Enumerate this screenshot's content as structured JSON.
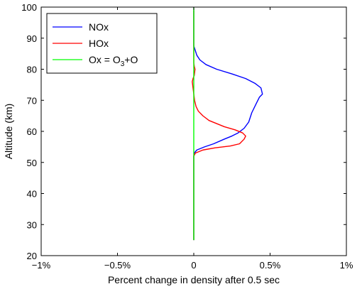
{
  "chart_data": {
    "type": "line",
    "title": "",
    "xlabel": "Percent change in density after 0.5 sec",
    "ylabel": "Altitude (km)",
    "xlim": [
      -1,
      1
    ],
    "ylim": [
      20,
      100
    ],
    "x_ticks": [
      -1,
      -0.5,
      0,
      0.5,
      1
    ],
    "x_tick_labels": [
      "−1%",
      "−0.5%",
      "0",
      "0.5%",
      "1%"
    ],
    "y_ticks": [
      20,
      30,
      40,
      50,
      60,
      70,
      80,
      90,
      100
    ],
    "y_tick_labels": [
      "20",
      "30",
      "40",
      "50",
      "60",
      "70",
      "80",
      "90",
      "100"
    ],
    "grid": false,
    "legend_position": "top-left",
    "legend": [
      {
        "label": "NOx",
        "color": "#0000ff"
      },
      {
        "label": "HOx",
        "color": "#ff0000"
      },
      {
        "label_parts": [
          [
            "Ox = O",
            "base"
          ],
          [
            "3",
            "sub"
          ],
          [
            "+O",
            "base"
          ]
        ],
        "color": "#00ff00"
      }
    ],
    "series": [
      {
        "name": "NOx",
        "color": "#0000ff",
        "points": [
          [
            0.0,
            25
          ],
          [
            0.0,
            52
          ],
          [
            0.003,
            53
          ],
          [
            0.02,
            54
          ],
          [
            0.07,
            55
          ],
          [
            0.13,
            56
          ],
          [
            0.2,
            57.5
          ],
          [
            0.25,
            58.5
          ],
          [
            0.29,
            59.5
          ],
          [
            0.33,
            61
          ],
          [
            0.36,
            63
          ],
          [
            0.38,
            66
          ],
          [
            0.41,
            69
          ],
          [
            0.43,
            71
          ],
          [
            0.45,
            72
          ],
          [
            0.44,
            74
          ],
          [
            0.4,
            75.5
          ],
          [
            0.34,
            77
          ],
          [
            0.25,
            78.5
          ],
          [
            0.15,
            80
          ],
          [
            0.08,
            81.5
          ],
          [
            0.04,
            83
          ],
          [
            0.02,
            84.5
          ],
          [
            0.01,
            86
          ],
          [
            0.0,
            87.5
          ],
          [
            0.0,
            89
          ],
          [
            0.0,
            99
          ]
        ]
      },
      {
        "name": "HOx",
        "color": "#ff0000",
        "points": [
          [
            0.0,
            25
          ],
          [
            0.0,
            52
          ],
          [
            0.01,
            53
          ],
          [
            0.06,
            54
          ],
          [
            0.14,
            54.7
          ],
          [
            0.24,
            55.3
          ],
          [
            0.3,
            56
          ],
          [
            0.33,
            57.5
          ],
          [
            0.34,
            58.5
          ],
          [
            0.32,
            59.5
          ],
          [
            0.27,
            60.5
          ],
          [
            0.2,
            61.5
          ],
          [
            0.15,
            62.5
          ],
          [
            0.1,
            63.5
          ],
          [
            0.06,
            65
          ],
          [
            0.03,
            66.5
          ],
          [
            0.015,
            68
          ],
          [
            0.005,
            70
          ],
          [
            0.0,
            72
          ],
          [
            -0.005,
            74
          ],
          [
            -0.01,
            76
          ],
          [
            -0.005,
            77
          ],
          [
            0.003,
            78
          ],
          [
            0.008,
            80
          ],
          [
            0.003,
            81
          ],
          [
            0.0,
            82
          ],
          [
            0.0,
            99
          ]
        ]
      },
      {
        "name": "Ox = O3+O",
        "color": "#00ff00",
        "points": [
          [
            0.0,
            25
          ],
          [
            0.0,
            60
          ],
          [
            0.0,
            100
          ]
        ]
      }
    ]
  }
}
